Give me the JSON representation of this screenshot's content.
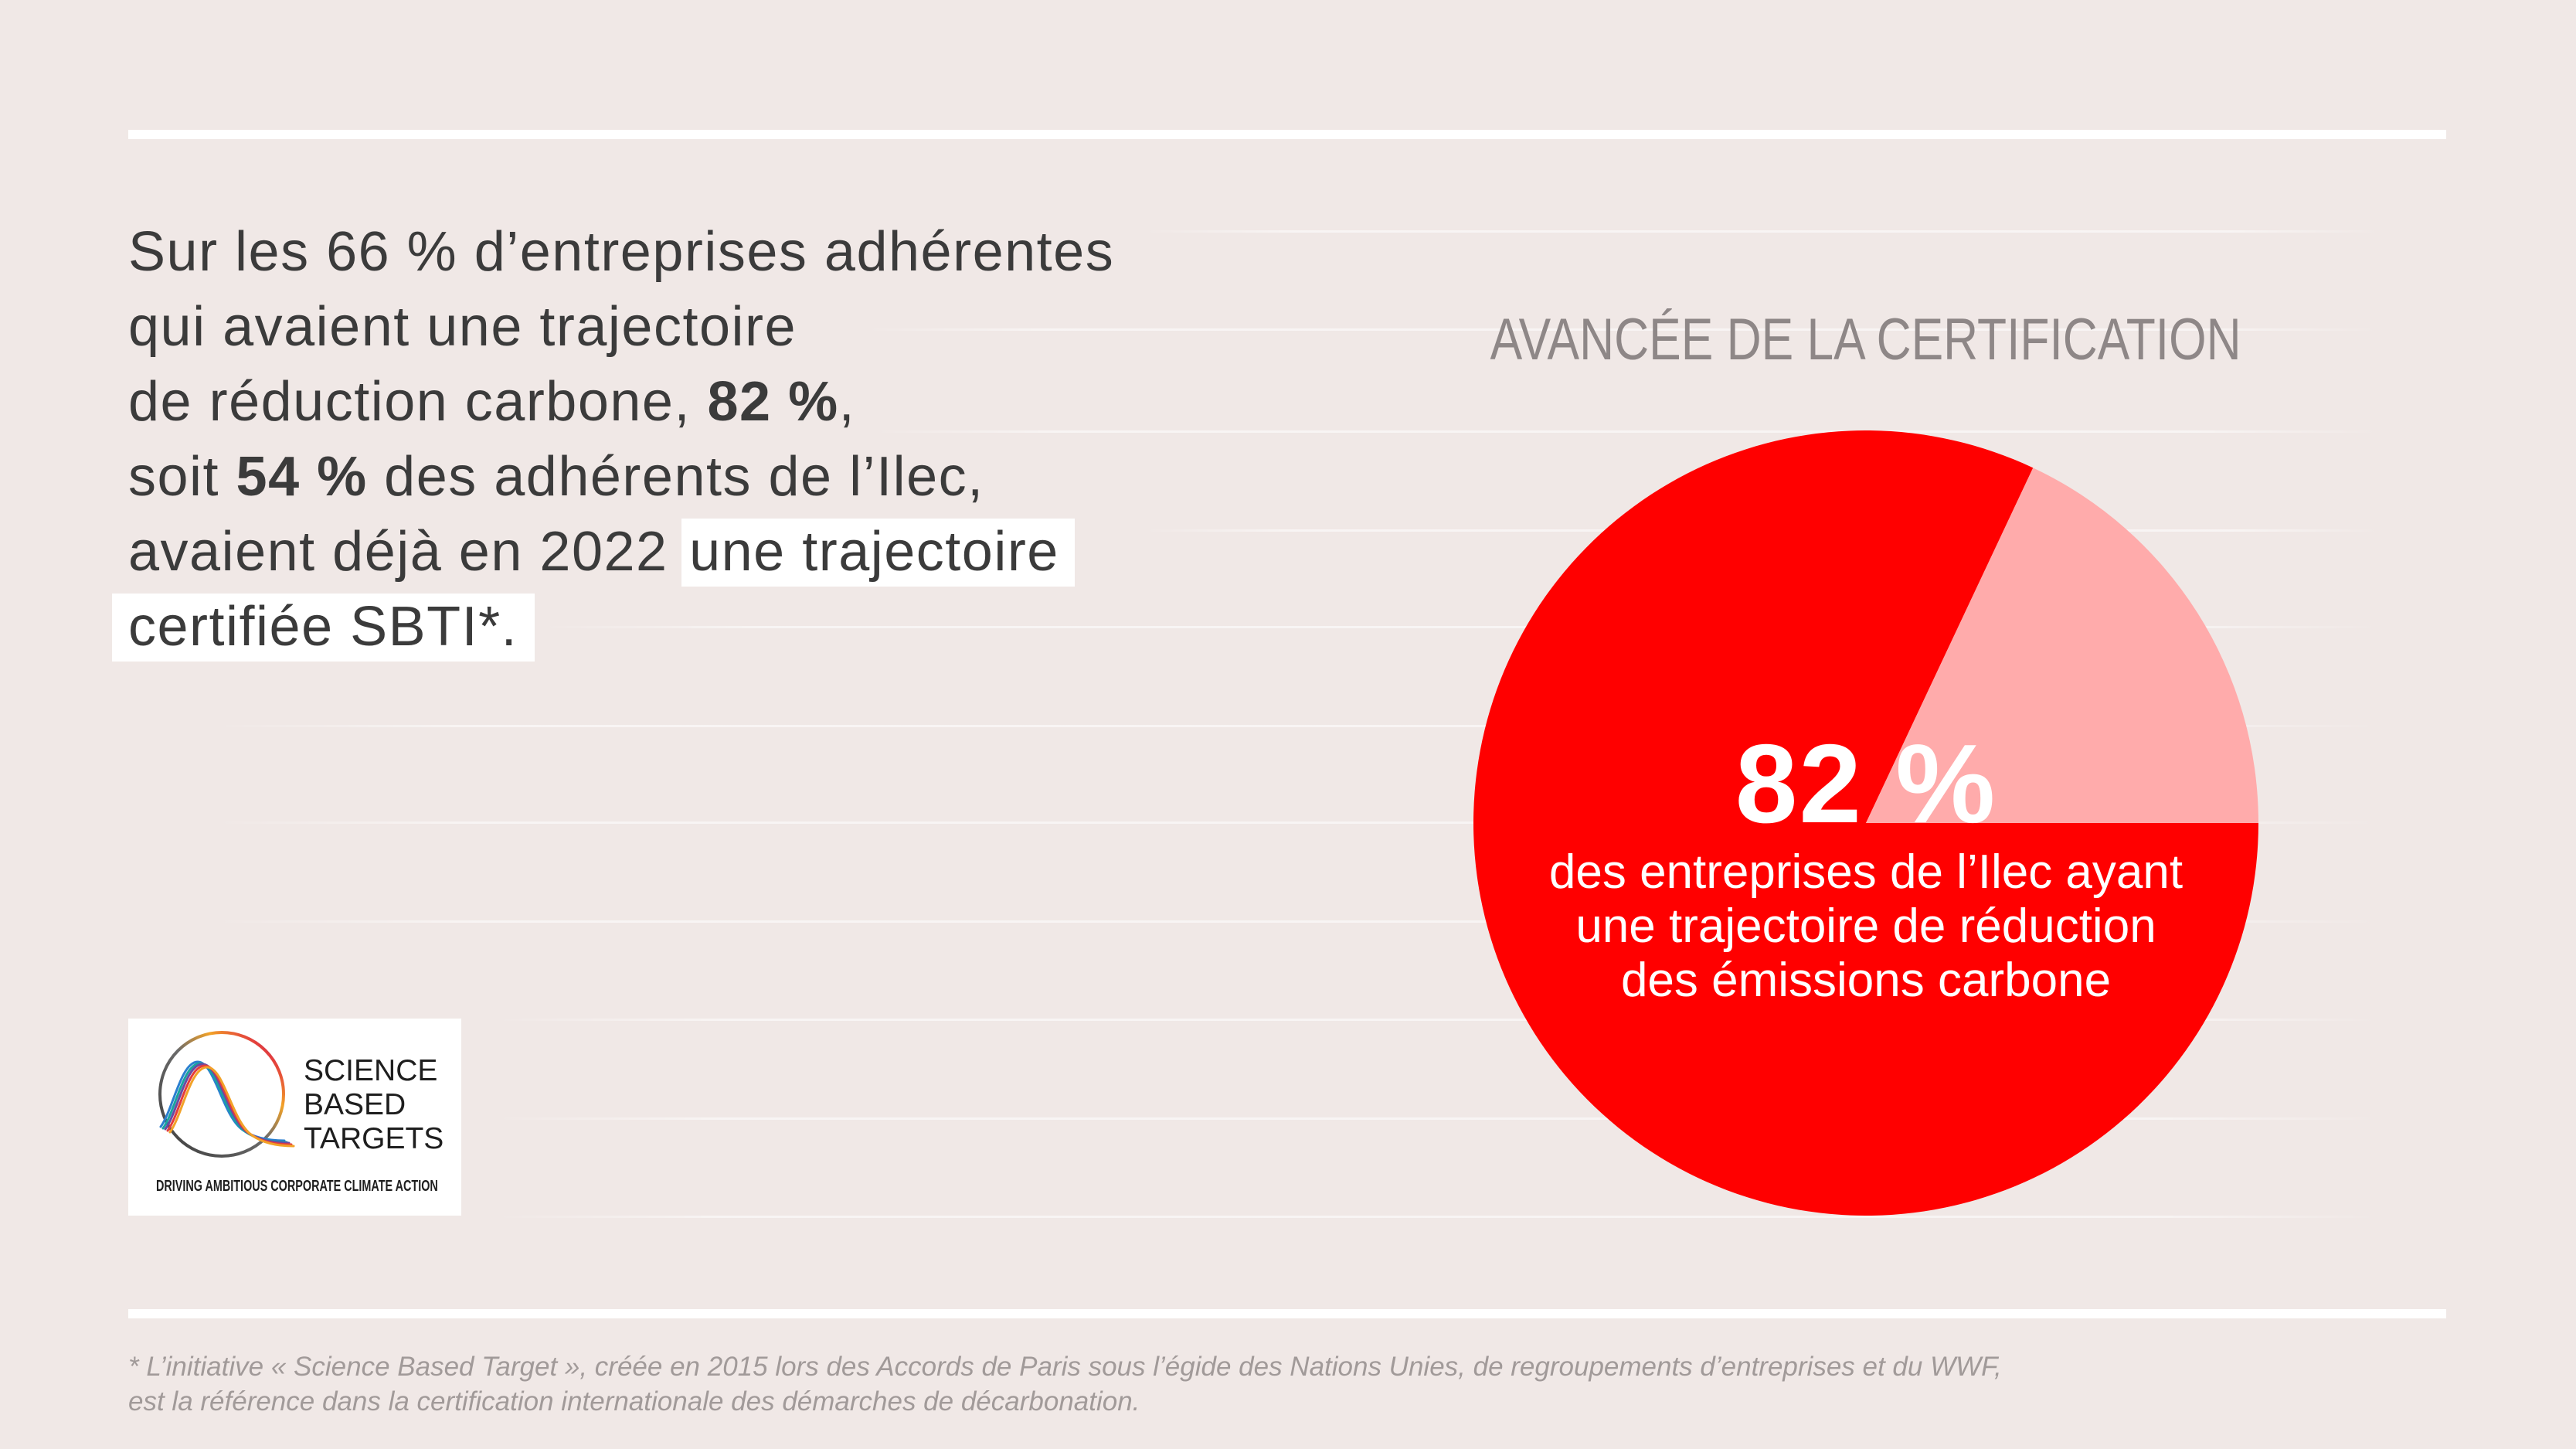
{
  "colors": {
    "background": "#f0e8e6",
    "text": "#3b3b3b",
    "accent": "#ff0000",
    "accent_light": "#ffabab",
    "highlight": "#ffffff",
    "muted": "#8e8787"
  },
  "intro": {
    "lines": [
      [
        "Sur les 66 % d’entreprises adhérentes"
      ],
      [
        "qui avaient une trajectoire"
      ],
      [
        "de réduction carbone, ",
        "82 %",
        ","
      ],
      [
        "soit ",
        "54 %",
        " des adhérents de l’Ilec,"
      ],
      [
        "avaient déjà en 2022 ",
        "une trajectoire"
      ],
      [
        "certifiée SBTI*."
      ]
    ]
  },
  "chart_data": {
    "type": "pie",
    "title": "AVANCÉE DE LA CERTIFICATION",
    "values": [
      82,
      18
    ],
    "colors": [
      "#ff0000",
      "#ffabab"
    ],
    "center_label": "82 %",
    "annotation": [
      "des entreprises de l’Ilec ayant",
      "une trajectoire de réduction",
      "des émissions carbone"
    ]
  },
  "logo": {
    "icon": "science-based-targets-logo-icon",
    "wordmark": [
      "SCIENCE",
      "BASED",
      "TARGETS"
    ],
    "tagline": "DRIVING AMBITIOUS CORPORATE CLIMATE ACTION"
  },
  "footnote": {
    "lines": [
      "* L’initiative « Science Based Target », créée en 2015 lors des Accords de Paris sous l’égide des Nations Unies, de regroupements d’entreprises et du WWF,",
      "est la référence dans la certification internationale des démarches de décarbonation."
    ]
  }
}
